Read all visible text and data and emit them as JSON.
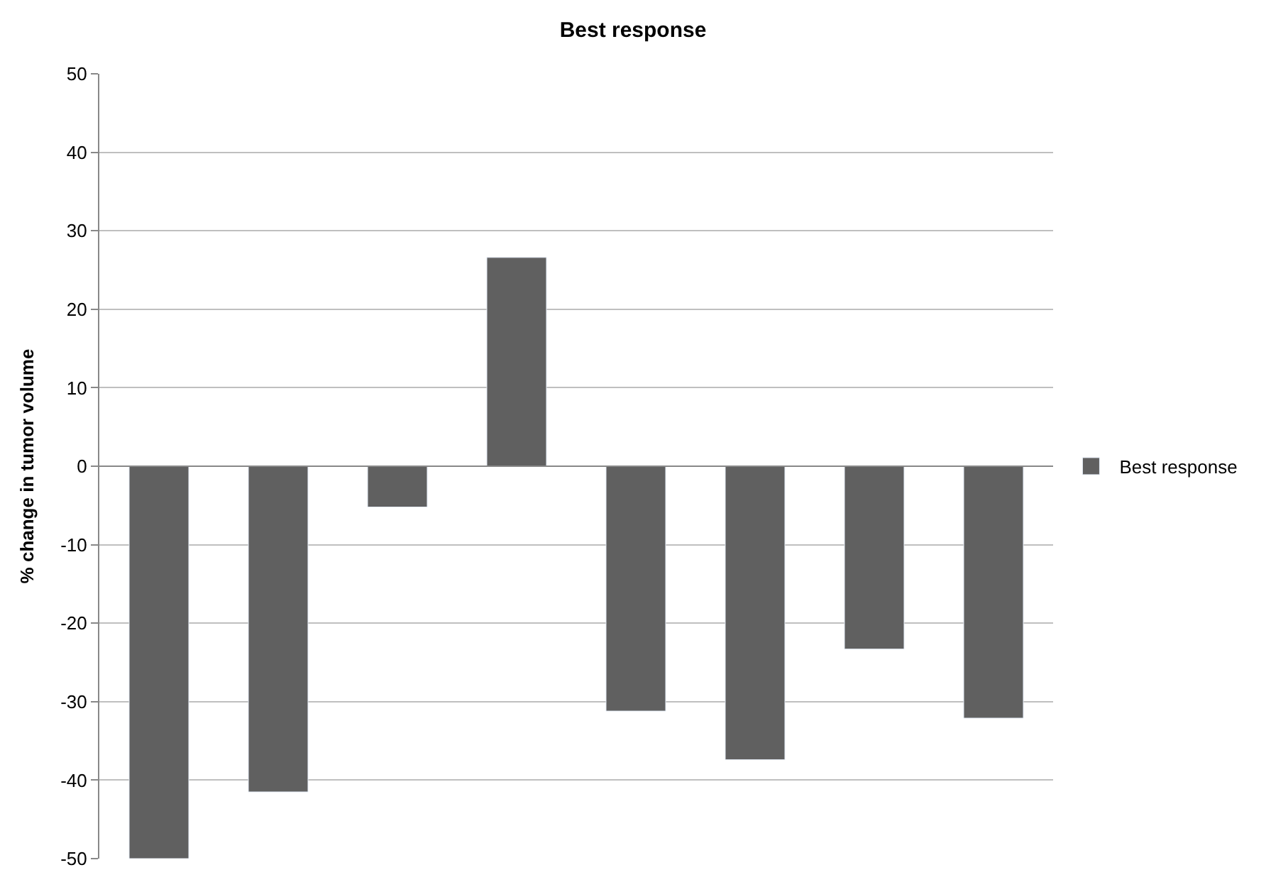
{
  "chart_data": {
    "type": "bar",
    "title": "Best response",
    "ylabel": "% change in tumor volume",
    "categories": [
      null,
      null,
      null,
      null,
      null,
      null,
      null,
      null
    ],
    "series": [
      {
        "name": "Best response",
        "color": "#606060",
        "values": [
          -50,
          -41.5,
          -5.2,
          26.6,
          -31.2,
          -37.4,
          -23.3,
          -32.1
        ]
      }
    ],
    "ylim": [
      -50,
      50
    ],
    "yticks": [
      -50,
      -40,
      -30,
      -20,
      -10,
      0,
      10,
      20,
      30,
      40,
      50
    ],
    "grid": "y",
    "legend": "right"
  }
}
